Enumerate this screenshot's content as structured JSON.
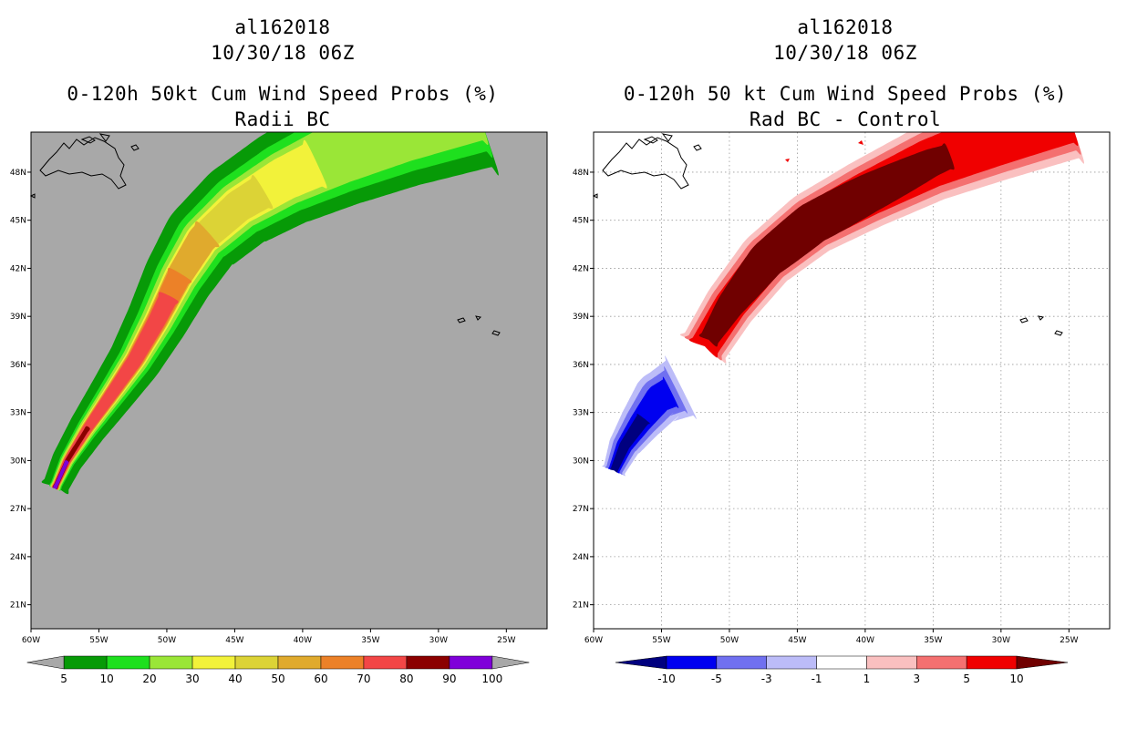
{
  "chart_data": [
    {
      "type": "heatmap",
      "storm_id": "al162018",
      "date": "10/30/18 06Z",
      "title": "0-120h 50kt Cum Wind Speed Probs (%)",
      "subtitle": "Radii BC",
      "background": "#a8a8a8",
      "x_ticks": [
        "60W",
        "55W",
        "50W",
        "45W",
        "40W",
        "35W",
        "30W",
        "25W"
      ],
      "y_ticks": [
        "48N",
        "45N",
        "42N",
        "39N",
        "36N",
        "33N",
        "30N",
        "27N",
        "24N",
        "21N"
      ],
      "xlim": [
        -60,
        -22
      ],
      "ylim": [
        19.5,
        50.5
      ],
      "grid": false,
      "colorbar": {
        "labels": [
          "5",
          "10",
          "20",
          "30",
          "40",
          "50",
          "60",
          "70",
          "80",
          "90",
          "100"
        ],
        "colors": [
          "#a8a8a8",
          "#079a07",
          "#1ee01e",
          "#9ae637",
          "#f2f23a",
          "#dcd336",
          "#e0aa2d",
          "#ec8128",
          "#f24646",
          "#8b0000",
          "#7f00d9",
          "#a8a8a8"
        ]
      },
      "levels": [
        {
          "min": 5,
          "color": "#079a07"
        },
        {
          "min": 10,
          "color": "#1ee01e"
        },
        {
          "min": 20,
          "color": "#9ae637"
        },
        {
          "min": 30,
          "color": "#f2f23a"
        },
        {
          "min": 40,
          "color": "#dcd336"
        },
        {
          "min": 50,
          "color": "#e0aa2d"
        },
        {
          "min": 60,
          "color": "#ec8128"
        },
        {
          "min": 70,
          "color": "#f24646"
        },
        {
          "min": 80,
          "color": "#8b0000"
        },
        {
          "min": 90,
          "color": "#7f00d9"
        }
      ]
    },
    {
      "type": "heatmap",
      "storm_id": "al162018",
      "date": "10/30/18 06Z",
      "title": "0-120h 50 kt Cum Wind Speed Probs (%)",
      "subtitle": "Rad BC - Control",
      "background": "#ffffff",
      "x_ticks": [
        "60W",
        "55W",
        "50W",
        "45W",
        "40W",
        "35W",
        "30W",
        "25W"
      ],
      "y_ticks": [
        "48N",
        "45N",
        "42N",
        "39N",
        "36N",
        "33N",
        "30N",
        "27N",
        "24N",
        "21N"
      ],
      "xlim": [
        -60,
        -22
      ],
      "ylim": [
        19.5,
        50.5
      ],
      "grid": true,
      "colorbar": {
        "labels": [
          "-10",
          "-5",
          "-3",
          "-1",
          "1",
          "3",
          "5",
          "10"
        ],
        "colors": [
          "#00007f",
          "#0000f0",
          "#7070f0",
          "#bcbcf8",
          "#ffffff",
          "#fac0c0",
          "#f47070",
          "#f00000",
          "#700000"
        ]
      },
      "pos_levels": [
        {
          "min": 1,
          "color": "#fac0c0"
        },
        {
          "min": 3,
          "color": "#f47070"
        },
        {
          "min": 5,
          "color": "#f00000"
        },
        {
          "min": 10,
          "color": "#700000"
        }
      ],
      "neg_levels": [
        {
          "min": 1,
          "color": "#bcbcf8"
        },
        {
          "min": 3,
          "color": "#7070f0"
        },
        {
          "min": 5,
          "color": "#0000f0"
        },
        {
          "min": 10,
          "color": "#00007f"
        }
      ]
    }
  ]
}
